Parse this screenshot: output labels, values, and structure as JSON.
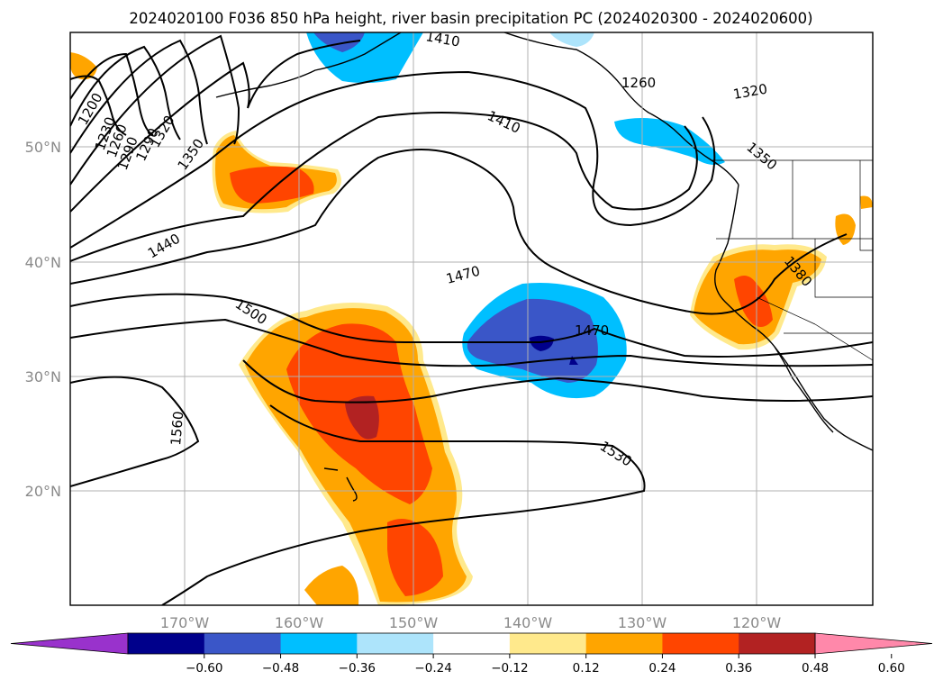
{
  "title": "2024020100 F036 850 hPa height, river basin precipitation PC (2024020300 - 2024020600)",
  "map": {
    "lat_labels": [
      "50°N",
      "40°N",
      "30°N",
      "20°N"
    ],
    "lon_labels": [
      "170°W",
      "160°W",
      "150°W",
      "140°W",
      "130°W",
      "120°W"
    ],
    "contour_labels": [
      "1410",
      "1260",
      "1320",
      "1350",
      "1410",
      "1320",
      "1350",
      "1440",
      "1470",
      "1500",
      "1470",
      "1380",
      "1560",
      "1530",
      "1200",
      "1230",
      "1290",
      "1290",
      "1260"
    ],
    "height_contour_unit": "m (850 hPa height)"
  },
  "colorbar": {
    "ticks": [
      "−0.60",
      "−0.48",
      "−0.36",
      "−0.24",
      "−0.12",
      "0.12",
      "0.24",
      "0.36",
      "0.48",
      "0.60"
    ],
    "colors": [
      "#9932cc",
      "#00008b",
      "#3a56c8",
      "#00bfff",
      "#ade4fb",
      "#ffffff",
      "#ffe98c",
      "#ffa500",
      "#ff4500",
      "#b22222",
      "#ff88aa"
    ]
  },
  "colors": {
    "orange": "#ffa500",
    "red_orange": "#ff4500",
    "dark_red": "#b22222",
    "light_yellow": "#ffe98c",
    "sky_blue": "#00bfff",
    "royal_blue": "#3a56c8",
    "navy": "#00008b",
    "grid": "#b0b0b0"
  }
}
